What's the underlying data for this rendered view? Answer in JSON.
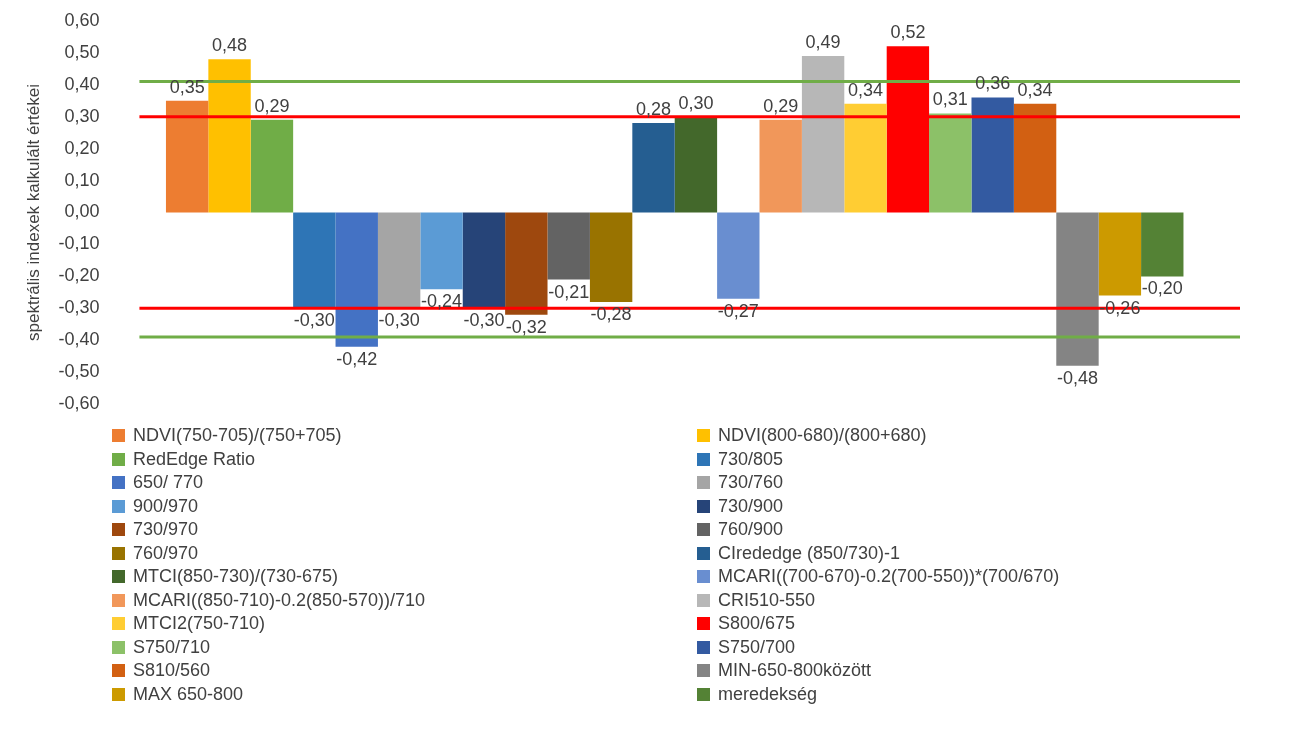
{
  "chart_data": {
    "type": "bar",
    "ylabel": "spektrális indexek kalkulált értékei",
    "categories": [
      null
    ],
    "ylim": [
      -0.6,
      0.6
    ],
    "yticks": [
      {
        "value": -0.6,
        "label": "-0,60"
      },
      {
        "value": -0.5,
        "label": "-0,50"
      },
      {
        "value": -0.4,
        "label": "-0,40"
      },
      {
        "value": -0.3,
        "label": "-0,30"
      },
      {
        "value": -0.2,
        "label": "-0,20"
      },
      {
        "value": -0.1,
        "label": "-0,10"
      },
      {
        "value": 0,
        "label": "0,00"
      },
      {
        "value": 0.1,
        "label": "0,10"
      },
      {
        "value": 0.2,
        "label": "0,20"
      },
      {
        "value": 0.3,
        "label": "0,30"
      },
      {
        "value": 0.4,
        "label": "0,40"
      },
      {
        "value": 0.5,
        "label": "0,50"
      },
      {
        "value": 0.6,
        "label": "0,60"
      }
    ],
    "grid": false,
    "legend": "bottom",
    "series": [
      {
        "name": "NDVI(750-705)/(750+705)",
        "color": "#ed7d31",
        "values": [
          0.35
        ],
        "value_labels": [
          "0,35"
        ]
      },
      {
        "name": "NDVI(800-680)/(800+680)",
        "color": "#ffc000",
        "values": [
          0.48
        ],
        "value_labels": [
          "0,48"
        ]
      },
      {
        "name": "RedEdge Ratio",
        "color": "#70ad47",
        "values": [
          0.29
        ],
        "value_labels": [
          "0,29"
        ]
      },
      {
        "name": "730/805",
        "color": "#2e75b6",
        "values": [
          -0.3
        ],
        "value_labels": [
          "-0,30"
        ]
      },
      {
        "name": "650/ 770",
        "color": "#4472c4",
        "values": [
          -0.42
        ],
        "value_labels": [
          "-0,42"
        ]
      },
      {
        "name": "730/760",
        "color": "#a5a5a5",
        "values": [
          -0.3
        ],
        "value_labels": [
          "-0,30"
        ]
      },
      {
        "name": "900/970",
        "color": "#5b9bd5",
        "values": [
          -0.24
        ],
        "value_labels": [
          "-0,24"
        ]
      },
      {
        "name": "730/900",
        "color": "#264478",
        "values": [
          -0.3
        ],
        "value_labels": [
          "-0,30"
        ]
      },
      {
        "name": "730/970",
        "color": "#9e480e",
        "values": [
          -0.32
        ],
        "value_labels": [
          "-0,32"
        ]
      },
      {
        "name": "760/900",
        "color": "#636363",
        "values": [
          -0.21
        ],
        "value_labels": [
          "-0,21"
        ]
      },
      {
        "name": "760/970",
        "color": "#997300",
        "values": [
          -0.28
        ],
        "value_labels": [
          "-0,28"
        ]
      },
      {
        "name": "CIrededge (850/730)-1",
        "color": "#255e91",
        "values": [
          0.28
        ],
        "value_labels": [
          "0,28"
        ]
      },
      {
        "name": "MTCI(850-730)/(730-675)",
        "color": "#43682b",
        "values": [
          0.3
        ],
        "value_labels": [
          "0,30"
        ]
      },
      {
        "name": "MCARI((700-670)-0.2(700-550))*(700/670)",
        "color": "#698ed0",
        "values": [
          -0.27
        ],
        "value_labels": [
          "-0,27"
        ]
      },
      {
        "name": "MCARI((850-710)-0.2(850-570))/710",
        "color": "#f1975a",
        "values": [
          0.29
        ],
        "value_labels": [
          "0,29"
        ]
      },
      {
        "name": "CRI510-550",
        "color": "#b7b7b7",
        "values": [
          0.49
        ],
        "value_labels": [
          "0,49"
        ]
      },
      {
        "name": "MTCI2(750-710)",
        "color": "#ffcd33",
        "values": [
          0.34
        ],
        "value_labels": [
          "0,34"
        ]
      },
      {
        "name": "S800/675",
        "color": "#ff0000",
        "values": [
          0.52
        ],
        "value_labels": [
          "0,52"
        ]
      },
      {
        "name": "S750/710",
        "color": "#8cc168",
        "values": [
          0.31
        ],
        "value_labels": [
          "0,31"
        ]
      },
      {
        "name": "S750/700",
        "color": "#335aa1",
        "values": [
          0.36
        ],
        "value_labels": [
          "0,36"
        ]
      },
      {
        "name": "S810/560",
        "color": "#d26012",
        "values": [
          0.34
        ],
        "value_labels": [
          "0,34"
        ]
      },
      {
        "name": "MIN-650-800között",
        "color": "#848484",
        "values": [
          -0.48
        ],
        "value_labels": [
          "-0,48"
        ]
      },
      {
        "name": "MAX 650-800",
        "color": "#cc9a00",
        "values": [
          -0.26
        ],
        "value_labels": [
          "-0,26"
        ]
      },
      {
        "name": "meredekség",
        "color": "#548235",
        "values": [
          -0.2
        ],
        "value_labels": [
          "-0,20"
        ]
      }
    ],
    "ref_lines": [
      {
        "axis": "y",
        "value": 0.41,
        "color": "#70ad47"
      },
      {
        "axis": "y",
        "value": 0.3,
        "color": "#ff0000"
      },
      {
        "axis": "y",
        "value": -0.3,
        "color": "#ff0000"
      },
      {
        "axis": "y",
        "value": -0.39,
        "color": "#70ad47"
      }
    ]
  }
}
